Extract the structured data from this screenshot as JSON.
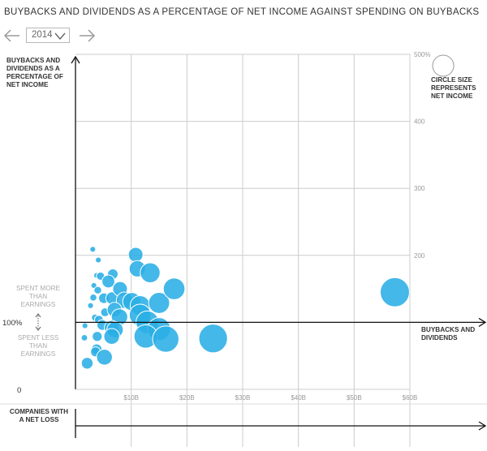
{
  "title": "BUYBACKS AND DIVIDENDS AS A PERCENTAGE OF NET INCOME AGAINST SPENDING ON BUYBACKS",
  "controls": {
    "year": "2014"
  },
  "colors": {
    "bubble": "#2aaee5",
    "grid": "#cccccc",
    "axis": "#111111",
    "muted": "#aaaaaa",
    "text": "#333333"
  },
  "legend": {
    "lines": [
      "CIRCLE SIZE",
      "REPRESENTS",
      "NET INCOME"
    ]
  },
  "chart_data": {
    "type": "scatter",
    "title": "BUYBACKS AND DIVIDENDS AS A PERCENTAGE OF NET INCOME AGAINST SPENDING ON BUYBACKS",
    "ylabel": [
      "BUYBACKS AND",
      "DIVIDENDS AS A",
      "PERCENTAGE OF",
      "NET INCOME"
    ],
    "xlabel": [
      "BUYBACKS AND",
      "DIVIDENDS"
    ],
    "xlim": [
      0,
      60
    ],
    "ylim": [
      0,
      500
    ],
    "x_ticks": [
      10,
      20,
      30,
      40,
      50,
      60
    ],
    "x_tick_labels": [
      "$10B",
      "$20B",
      "$30B",
      "$40B",
      "$50B",
      "$60B"
    ],
    "y_ticks": [
      200,
      300,
      400,
      500
    ],
    "y_tick_labels": [
      "200",
      "300",
      "400",
      "500%"
    ],
    "baseline_label": "100%",
    "zero_label": "0",
    "above_label": [
      "SPENT MORE",
      "THAN",
      "EARNINGS"
    ],
    "below_label": [
      "SPENT LESS",
      "THAN",
      "EARNINGS"
    ],
    "loss_label": [
      "COMPANIES WITH",
      "A NET LOSS"
    ],
    "grid": true,
    "points": [
      {
        "x": 3.1,
        "y": 209,
        "size": 1
      },
      {
        "x": 4.1,
        "y": 193,
        "size": 1
      },
      {
        "x": 3.8,
        "y": 170,
        "size": 1
      },
      {
        "x": 4.5,
        "y": 169,
        "size": 1.4
      },
      {
        "x": 6.7,
        "y": 172,
        "size": 1.8
      },
      {
        "x": 3.3,
        "y": 155,
        "size": 1
      },
      {
        "x": 4.0,
        "y": 148,
        "size": 1.3
      },
      {
        "x": 5.9,
        "y": 161,
        "size": 2.2
      },
      {
        "x": 3.2,
        "y": 137,
        "size": 1.2
      },
      {
        "x": 2.7,
        "y": 125,
        "size": 1
      },
      {
        "x": 5.1,
        "y": 136,
        "size": 1.8
      },
      {
        "x": 6.6,
        "y": 136,
        "size": 2.2
      },
      {
        "x": 8.0,
        "y": 150,
        "size": 2.5
      },
      {
        "x": 8.8,
        "y": 133,
        "size": 2.8
      },
      {
        "x": 10.1,
        "y": 131,
        "size": 3.1
      },
      {
        "x": 10.8,
        "y": 201,
        "size": 2.5
      },
      {
        "x": 11.1,
        "y": 180,
        "size": 2.8
      },
      {
        "x": 13.4,
        "y": 174,
        "size": 3.4
      },
      {
        "x": 5.3,
        "y": 115,
        "size": 1.5
      },
      {
        "x": 7.0,
        "y": 119,
        "size": 2.5
      },
      {
        "x": 7.9,
        "y": 108,
        "size": 2.8
      },
      {
        "x": 11.6,
        "y": 125,
        "size": 3.4
      },
      {
        "x": 11.6,
        "y": 111,
        "size": 3.7
      },
      {
        "x": 15.0,
        "y": 129,
        "size": 3.6
      },
      {
        "x": 17.7,
        "y": 150,
        "size": 3.7
      },
      {
        "x": 3.5,
        "y": 107,
        "size": 1.2
      },
      {
        "x": 4.2,
        "y": 104,
        "size": 1.5
      },
      {
        "x": 1.7,
        "y": 95,
        "size": 1
      },
      {
        "x": 4.8,
        "y": 96,
        "size": 1.8
      },
      {
        "x": 6.5,
        "y": 92,
        "size": 2.5
      },
      {
        "x": 7.1,
        "y": 89,
        "size": 2.8
      },
      {
        "x": 3.9,
        "y": 79,
        "size": 1.7
      },
      {
        "x": 1.6,
        "y": 77,
        "size": 1.1
      },
      {
        "x": 6.5,
        "y": 79,
        "size": 2.7
      },
      {
        "x": 12.9,
        "y": 100,
        "size": 3.9
      },
      {
        "x": 15.0,
        "y": 90,
        "size": 3.9
      },
      {
        "x": 12.6,
        "y": 79,
        "size": 4.0
      },
      {
        "x": 16.2,
        "y": 75,
        "size": 4.5
      },
      {
        "x": 3.8,
        "y": 60,
        "size": 1.8
      },
      {
        "x": 3.6,
        "y": 56,
        "size": 1.7
      },
      {
        "x": 5.2,
        "y": 48,
        "size": 2.7
      },
      {
        "x": 2.1,
        "y": 39,
        "size": 2.0
      },
      {
        "x": 24.7,
        "y": 76,
        "size": 4.9
      },
      {
        "x": 57.3,
        "y": 145,
        "size": 5.0
      }
    ]
  }
}
